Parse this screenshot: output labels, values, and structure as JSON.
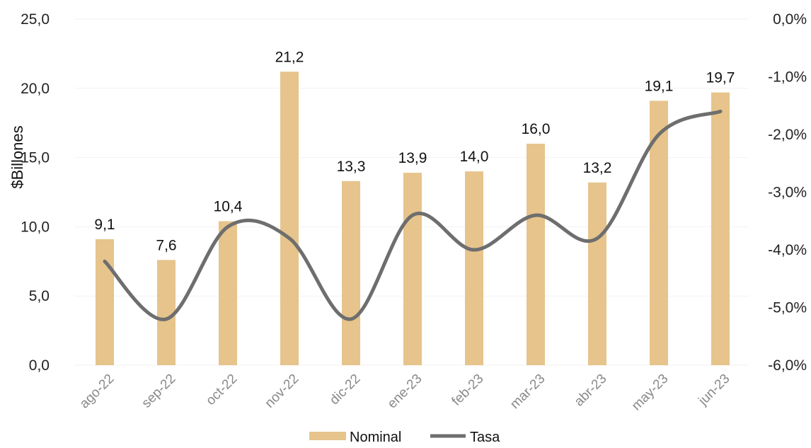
{
  "chart_data": {
    "type": "bar",
    "categories": [
      "ago-22",
      "sep-22",
      "oct-22",
      "nov-22",
      "dic-22",
      "ene-23",
      "feb-23",
      "mar-23",
      "abr-23",
      "may-23",
      "jun-23"
    ],
    "series": [
      {
        "name": "Nominal",
        "type": "bar",
        "axis": "left",
        "values": [
          9.1,
          7.6,
          10.4,
          21.2,
          13.3,
          13.9,
          14.0,
          16.0,
          13.2,
          19.1,
          19.7
        ],
        "labels": [
          "9,1",
          "7,6",
          "10,4",
          "21,2",
          "13,3",
          "13,9",
          "14,0",
          "16,0",
          "13,2",
          "19,1",
          "19,7"
        ]
      },
      {
        "name": "Tasa",
        "type": "line",
        "axis": "right",
        "values": [
          -4.2,
          -5.2,
          -3.6,
          -3.8,
          -5.2,
          -3.4,
          -4.0,
          -3.4,
          -3.8,
          -2.0,
          -1.6
        ]
      }
    ],
    "ylabel": "$Billones",
    "ylim": [
      0,
      25
    ],
    "y_ticks": [
      "0,0",
      "5,0",
      "10,0",
      "15,0",
      "20,0",
      "25,0"
    ],
    "y2lim": [
      -6.0,
      0.0
    ],
    "y2_ticks": [
      "-6,0%",
      "-5,0%",
      "-4,0%",
      "-3,0%",
      "-2,0%",
      "-1,0%",
      "0,0%"
    ],
    "colors": {
      "bar": "#e6c48c",
      "line": "#6e6e6e"
    },
    "legend_position": "bottom",
    "grid": true
  }
}
